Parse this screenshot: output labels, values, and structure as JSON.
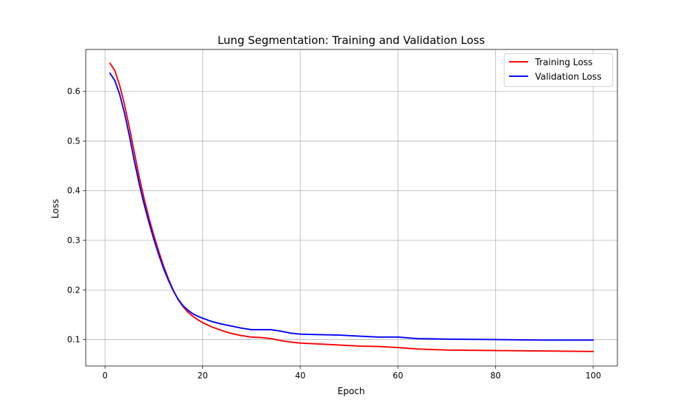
{
  "chart_data": {
    "type": "line",
    "title": "Lung Segmentation: Training and Validation Loss",
    "xlabel": "Epoch",
    "ylabel": "Loss",
    "xlim": [
      -3.95,
      104.95
    ],
    "ylim": [
      0.0468,
      0.6846
    ],
    "xticks": [
      0,
      20,
      40,
      60,
      80,
      100
    ],
    "yticks": [
      0.1,
      0.2,
      0.3,
      0.4,
      0.5,
      0.6
    ],
    "xtick_labels": [
      "0",
      "20",
      "40",
      "60",
      "80",
      "100"
    ],
    "ytick_labels": [
      "0.1",
      "0.2",
      "0.3",
      "0.4",
      "0.5",
      "0.6"
    ],
    "grid": true,
    "legend_position": "top-right",
    "series": [
      {
        "name": "Training Loss",
        "color": "#ff0000",
        "x": [
          1,
          2,
          3,
          4,
          5,
          6,
          7,
          8,
          9,
          10,
          11,
          12,
          13,
          14,
          15,
          16,
          17,
          18,
          19,
          20,
          22,
          24,
          26,
          28,
          30,
          32,
          34,
          36,
          38,
          40,
          44,
          48,
          52,
          56,
          60,
          64,
          70,
          80,
          90,
          100
        ],
        "y": [
          0.657,
          0.642,
          0.612,
          0.573,
          0.527,
          0.477,
          0.428,
          0.384,
          0.345,
          0.31,
          0.278,
          0.248,
          0.222,
          0.199,
          0.18,
          0.166,
          0.155,
          0.147,
          0.14,
          0.134,
          0.125,
          0.118,
          0.112,
          0.108,
          0.105,
          0.104,
          0.102,
          0.098,
          0.095,
          0.093,
          0.091,
          0.089,
          0.087,
          0.086,
          0.084,
          0.081,
          0.079,
          0.078,
          0.077,
          0.076
        ]
      },
      {
        "name": "Validation Loss",
        "color": "#0000ff",
        "x": [
          1,
          2,
          3,
          4,
          5,
          6,
          7,
          8,
          9,
          10,
          11,
          12,
          13,
          14,
          15,
          16,
          17,
          18,
          19,
          20,
          22,
          24,
          26,
          28,
          30,
          32,
          34,
          36,
          38,
          40,
          44,
          48,
          52,
          56,
          60,
          64,
          70,
          80,
          90,
          100
        ],
        "y": [
          0.637,
          0.622,
          0.594,
          0.556,
          0.51,
          0.46,
          0.414,
          0.373,
          0.336,
          0.302,
          0.271,
          0.243,
          0.219,
          0.198,
          0.181,
          0.168,
          0.159,
          0.152,
          0.147,
          0.143,
          0.136,
          0.131,
          0.127,
          0.123,
          0.12,
          0.12,
          0.12,
          0.117,
          0.113,
          0.111,
          0.11,
          0.109,
          0.107,
          0.105,
          0.105,
          0.102,
          0.101,
          0.1,
          0.099,
          0.099
        ]
      }
    ]
  }
}
